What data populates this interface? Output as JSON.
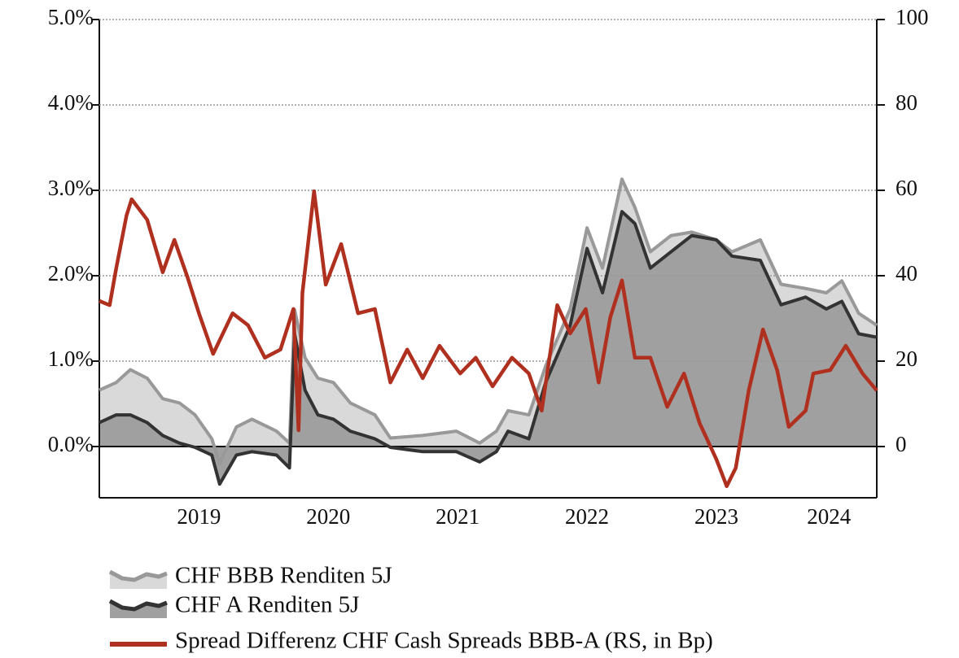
{
  "chart_data": {
    "type": "line",
    "xlim": [
      2018.73,
      2024.74
    ],
    "xticks": [
      {
        "value": 2019.5,
        "label": "2019"
      },
      {
        "value": 2020.5,
        "label": "2020"
      },
      {
        "value": 2021.5,
        "label": "2021"
      },
      {
        "value": 2022.5,
        "label": "2022"
      },
      {
        "value": 2023.5,
        "label": "2023"
      },
      {
        "value": 2024.37,
        "label": "2024"
      }
    ],
    "ylim": [
      -0.6,
      5.0
    ],
    "yticks": [
      {
        "value": 0,
        "label": "0.0%"
      },
      {
        "value": 1,
        "label": "1.0%"
      },
      {
        "value": 2,
        "label": "2.0%"
      },
      {
        "value": 3,
        "label": "3.0%"
      },
      {
        "value": 4,
        "label": "4.0%"
      },
      {
        "value": 5,
        "label": "5.0%"
      }
    ],
    "y2lim": [
      -12,
      100
    ],
    "y2ticks": [
      0,
      20,
      40,
      60,
      80,
      100
    ],
    "grid": true,
    "series": [
      {
        "name": "CHF BBB Renditen 5J",
        "color": "#999999",
        "fill": "#d9d9d9",
        "x": [
          2018.73,
          2018.86,
          2018.97,
          2019.1,
          2019.22,
          2019.35,
          2019.47,
          2019.6,
          2019.66,
          2019.79,
          2019.91,
          2020.1,
          2020.2,
          2020.24,
          2020.32,
          2020.42,
          2020.54,
          2020.67,
          2020.86,
          2020.98,
          2021.23,
          2021.49,
          2021.67,
          2021.8,
          2021.89,
          2022.05,
          2022.18,
          2022.37,
          2022.5,
          2022.62,
          2022.77,
          2022.87,
          2022.99,
          2023.15,
          2023.31,
          2023.5,
          2023.62,
          2023.84,
          2024.0,
          2024.19,
          2024.35,
          2024.47,
          2024.6,
          2024.74
        ],
        "values": [
          0.66,
          0.75,
          0.9,
          0.8,
          0.56,
          0.51,
          0.37,
          0.09,
          -0.2,
          0.23,
          0.32,
          0.18,
          0.04,
          1.6,
          1.04,
          0.8,
          0.75,
          0.51,
          0.37,
          0.1,
          0.13,
          0.18,
          0.04,
          0.18,
          0.42,
          0.37,
          0.94,
          1.61,
          2.56,
          2.09,
          3.13,
          2.8,
          2.28,
          2.47,
          2.51,
          2.42,
          2.28,
          2.42,
          1.9,
          1.85,
          1.8,
          1.94,
          1.56,
          1.42
        ]
      },
      {
        "name": "CHF A Renditen 5J",
        "color": "#333333",
        "fill": "#a0a0a0",
        "x": [
          2018.73,
          2018.86,
          2018.97,
          2019.1,
          2019.22,
          2019.35,
          2019.47,
          2019.6,
          2019.66,
          2019.79,
          2019.91,
          2020.1,
          2020.2,
          2020.24,
          2020.32,
          2020.42,
          2020.54,
          2020.67,
          2020.86,
          2020.98,
          2021.23,
          2021.49,
          2021.67,
          2021.8,
          2021.89,
          2022.05,
          2022.18,
          2022.37,
          2022.5,
          2022.62,
          2022.77,
          2022.87,
          2022.99,
          2023.15,
          2023.31,
          2023.5,
          2023.62,
          2023.84,
          2024.0,
          2024.19,
          2024.35,
          2024.47,
          2024.6,
          2024.74
        ],
        "values": [
          0.28,
          0.37,
          0.37,
          0.28,
          0.13,
          0.04,
          -0.01,
          -0.1,
          -0.44,
          -0.1,
          -0.06,
          -0.1,
          -0.25,
          1.32,
          0.66,
          0.37,
          0.32,
          0.18,
          0.09,
          -0.01,
          -0.06,
          -0.06,
          -0.18,
          -0.06,
          0.18,
          0.09,
          0.75,
          1.42,
          2.32,
          1.8,
          2.75,
          2.61,
          2.09,
          2.28,
          2.47,
          2.42,
          2.23,
          2.18,
          1.66,
          1.75,
          1.61,
          1.7,
          1.32,
          1.28
        ]
      },
      {
        "name": "Spread Differenz CHF Cash Spreads BBB-A (RS, in Bp)",
        "color": "#b03020",
        "axis": "y2",
        "x": [
          2018.73,
          2018.81,
          2018.86,
          2018.94,
          2018.98,
          2019.1,
          2019.22,
          2019.31,
          2019.41,
          2019.5,
          2019.61,
          2019.76,
          2019.88,
          2020.01,
          2020.13,
          2020.23,
          2020.27,
          2020.3,
          2020.39,
          2020.48,
          2020.6,
          2020.73,
          2020.86,
          2020.98,
          2021.11,
          2021.23,
          2021.36,
          2021.52,
          2021.64,
          2021.77,
          2021.92,
          2022.05,
          2022.15,
          2022.27,
          2022.37,
          2022.49,
          2022.59,
          2022.68,
          2022.77,
          2022.87,
          2022.99,
          2023.12,
          2023.25,
          2023.37,
          2023.5,
          2023.58,
          2023.65,
          2023.75,
          2023.86,
          2023.97,
          2024.06,
          2024.19,
          2024.25,
          2024.38,
          2024.5,
          2024.63,
          2024.74
        ],
        "values": [
          34.1,
          33.1,
          41.7,
          54.1,
          57.9,
          53.1,
          40.8,
          48.4,
          39.8,
          31.2,
          21.7,
          31.2,
          28.4,
          20.8,
          22.7,
          32.2,
          3.8,
          36.0,
          59.8,
          37.9,
          47.4,
          31.2,
          32.2,
          15.0,
          22.7,
          16.0,
          23.6,
          17.1,
          20.8,
          14.1,
          20.8,
          17.1,
          8.4,
          33.1,
          26.5,
          32.2,
          15.0,
          30.3,
          38.9,
          20.8,
          20.8,
          9.3,
          17.1,
          5.5,
          -3.0,
          -9.3,
          -5.0,
          13.1,
          27.4,
          17.9,
          4.6,
          8.4,
          17.1,
          17.9,
          23.6,
          17.1,
          13.1
        ]
      }
    ]
  }
}
